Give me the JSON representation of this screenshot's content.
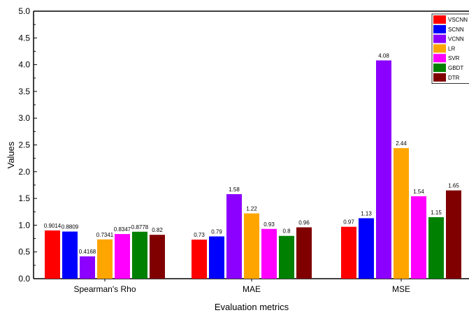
{
  "chart_data": {
    "type": "bar",
    "xlabel": "Evaluation metrics",
    "ylabel": "Values",
    "ylim": [
      0,
      5.0
    ],
    "y_ticks": [
      "0.0",
      "0.5",
      "1.0",
      "1.5",
      "2.0",
      "2.5",
      "3.0",
      "3.5",
      "4.0",
      "4.5",
      "5.0"
    ],
    "categories": [
      "Spearman's Rho",
      "MAE",
      "MSE"
    ],
    "series": [
      {
        "name": "VSCNN",
        "color": "#ff0000",
        "values": [
          0.9014,
          0.73,
          0.97
        ],
        "labels": [
          "0.9014",
          "0.73",
          "0.97"
        ]
      },
      {
        "name": "SCNN",
        "color": "#0000ff",
        "values": [
          0.8809,
          0.79,
          1.13
        ],
        "labels": [
          "0.8809",
          "0.79",
          "1.13"
        ]
      },
      {
        "name": "VCNN",
        "color": "#8b00ff",
        "values": [
          0.4168,
          1.58,
          4.08
        ],
        "labels": [
          "0.4168",
          "1.58",
          "4.08"
        ]
      },
      {
        "name": "LR",
        "color": "#ffa500",
        "values": [
          0.7341,
          1.22,
          2.44
        ],
        "labels": [
          "0.7341",
          "1.22",
          "2.44"
        ]
      },
      {
        "name": "SVR",
        "color": "#ff00ff",
        "values": [
          0.8347,
          0.93,
          1.54
        ],
        "labels": [
          "0.8347",
          "0.93",
          "1.54"
        ]
      },
      {
        "name": "GBDT",
        "color": "#008000",
        "values": [
          0.8778,
          0.8,
          1.15
        ],
        "labels": [
          "0.8778",
          "0.8",
          "1.15"
        ]
      },
      {
        "name": "DTR",
        "color": "#800000",
        "values": [
          0.82,
          0.96,
          1.65
        ],
        "labels": [
          "0.82",
          "0.96",
          "1.65"
        ]
      }
    ],
    "grid": false,
    "legend_position": "top-right"
  }
}
